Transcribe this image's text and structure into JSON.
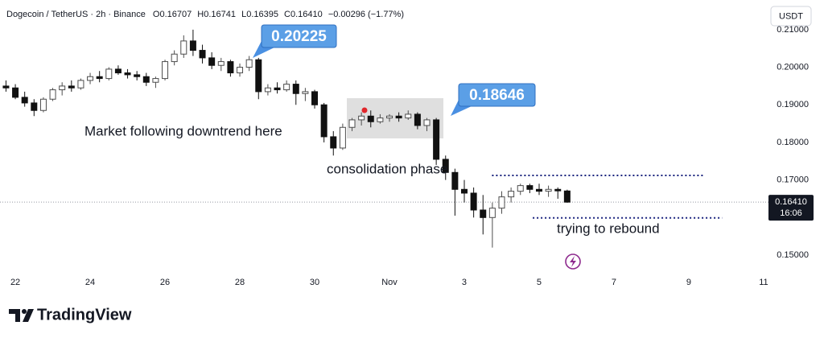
{
  "header": {
    "symbol": "Dogecoin / TetherUS · 2h · Binance",
    "ohlc": [
      "O0.16707",
      "H0.16741",
      "L0.16395",
      "C0.16410"
    ],
    "change": "−0.00296 (−1.77%)"
  },
  "chart_data": {
    "type": "candlestick",
    "currency": "USDT",
    "up_color": "#4d4d4d",
    "down_color": "#111111",
    "x": [
      21.75,
      22,
      22.25,
      22.5,
      22.75,
      23,
      23.25,
      23.5,
      23.75,
      24,
      24.25,
      24.5,
      24.75,
      25,
      25.25,
      25.5,
      25.75,
      26,
      26.25,
      26.5,
      26.75,
      27,
      27.25,
      27.5,
      27.75,
      28,
      28.25,
      28.5,
      28.75,
      29,
      29.25,
      29.5,
      29.75,
      30,
      30.25,
      30.5,
      30.75,
      31,
      31.25,
      31.5,
      31.75,
      32,
      32.25,
      32.5,
      32.75,
      33,
      33.25,
      33.5,
      33.75,
      34,
      34.25,
      34.5,
      34.75,
      35,
      35.25,
      35.5,
      35.75,
      36,
      36.25,
      36.5,
      36.75
    ],
    "open": [
      0.195,
      0.1945,
      0.192,
      0.1905,
      0.1885,
      0.1915,
      0.194,
      0.195,
      0.1945,
      0.1965,
      0.1975,
      0.197,
      0.1995,
      0.1985,
      0.198,
      0.1975,
      0.196,
      0.197,
      0.2015,
      0.2035,
      0.207,
      0.2045,
      0.2025,
      0.2005,
      0.2015,
      0.1985,
      0.2,
      0.202,
      0.1935,
      0.1945,
      0.194,
      0.1955,
      0.193,
      0.1935,
      0.19,
      0.1815,
      0.1785,
      0.184,
      0.186,
      0.187,
      0.1855,
      0.1865,
      0.187,
      0.1865,
      0.1875,
      0.1845,
      0.186,
      0.1755,
      0.172,
      0.1675,
      0.1665,
      0.162,
      0.16,
      0.1625,
      0.1655,
      0.167,
      0.1685,
      0.1675,
      0.167,
      0.1675,
      0.16707
    ],
    "high": [
      0.1965,
      0.1955,
      0.1935,
      0.1915,
      0.192,
      0.1945,
      0.196,
      0.1965,
      0.197,
      0.1985,
      0.199,
      0.2,
      0.2005,
      0.1995,
      0.199,
      0.1985,
      0.1975,
      0.202,
      0.2045,
      0.2085,
      0.21,
      0.206,
      0.204,
      0.2025,
      0.202,
      0.201,
      0.203,
      0.2025,
      0.1955,
      0.196,
      0.1965,
      0.1965,
      0.1945,
      0.194,
      0.1905,
      0.183,
      0.185,
      0.1865,
      0.188,
      0.1885,
      0.1875,
      0.1875,
      0.188,
      0.1885,
      0.188,
      0.1865,
      0.1865,
      0.1765,
      0.173,
      0.17,
      0.168,
      0.166,
      0.164,
      0.167,
      0.168,
      0.169,
      0.169,
      0.169,
      0.1685,
      0.168,
      0.16741
    ],
    "low": [
      0.1935,
      0.1915,
      0.1895,
      0.187,
      0.188,
      0.191,
      0.1925,
      0.1935,
      0.194,
      0.1955,
      0.196,
      0.1965,
      0.198,
      0.197,
      0.1965,
      0.195,
      0.1945,
      0.1965,
      0.2005,
      0.2025,
      0.203,
      0.201,
      0.1995,
      0.199,
      0.1975,
      0.1975,
      0.199,
      0.1915,
      0.1925,
      0.193,
      0.1935,
      0.19,
      0.191,
      0.189,
      0.18,
      0.1765,
      0.178,
      0.183,
      0.1845,
      0.184,
      0.185,
      0.1855,
      0.1855,
      0.186,
      0.1835,
      0.183,
      0.174,
      0.17,
      0.1605,
      0.164,
      0.16,
      0.1555,
      0.152,
      0.161,
      0.164,
      0.166,
      0.1665,
      0.166,
      0.1655,
      0.165,
      0.16395
    ],
    "close": [
      0.1945,
      0.192,
      0.1905,
      0.1885,
      0.1915,
      0.194,
      0.195,
      0.1945,
      0.1965,
      0.1975,
      0.197,
      0.1995,
      0.1985,
      0.198,
      0.1975,
      0.196,
      0.197,
      0.2015,
      0.2035,
      0.207,
      0.2045,
      0.2025,
      0.2005,
      0.2015,
      0.1985,
      0.2,
      0.202,
      0.1935,
      0.1945,
      0.194,
      0.1955,
      0.193,
      0.1935,
      0.19,
      0.1815,
      0.1785,
      0.184,
      0.186,
      0.187,
      0.1855,
      0.1865,
      0.187,
      0.1865,
      0.1875,
      0.1845,
      0.186,
      0.1755,
      0.172,
      0.1675,
      0.1665,
      0.162,
      0.16,
      0.1625,
      0.1655,
      0.167,
      0.1685,
      0.1675,
      0.167,
      0.1675,
      0.1671,
      0.1641
    ],
    "xlim": [
      21.59,
      42.13
    ],
    "xticks": [
      22,
      24,
      26,
      28,
      30,
      {
        "value": 32,
        "label": "Nov"
      },
      {
        "value": 34,
        "label": "3"
      },
      {
        "value": 36,
        "label": "5"
      },
      {
        "value": 38,
        "label": "7"
      },
      {
        "value": 40,
        "label": "9"
      },
      {
        "value": 42,
        "label": "11"
      }
    ],
    "ylim": [
      0.1455,
      0.2179
    ],
    "yticks": [
      {
        "value": 0.15,
        "label": "0.15000"
      },
      {
        "value": 0.17,
        "label": "0.17000"
      },
      {
        "value": 0.18,
        "label": "0.18000"
      },
      {
        "value": 0.19,
        "label": "0.19000"
      },
      {
        "value": 0.2,
        "label": "0.20000"
      },
      {
        "value": 0.21,
        "label": "0.21000"
      }
    ],
    "last_price": {
      "value": 0.1641,
      "label": "0.16410",
      "countdown": "16:06"
    },
    "levels": [
      {
        "value": 0.1712,
        "x": [
          34.74,
          40.39
        ]
      },
      {
        "value": 0.1599,
        "x": [
          35.83,
          40.89
        ]
      }
    ],
    "annotations": [
      {
        "text": "0.20225"
      },
      {
        "text": "0.18646"
      },
      {
        "text": "Market following downtrend here"
      },
      {
        "text": "consolidation phase"
      },
      {
        "text": "trying to rebound"
      }
    ]
  },
  "branding": "TradingView"
}
